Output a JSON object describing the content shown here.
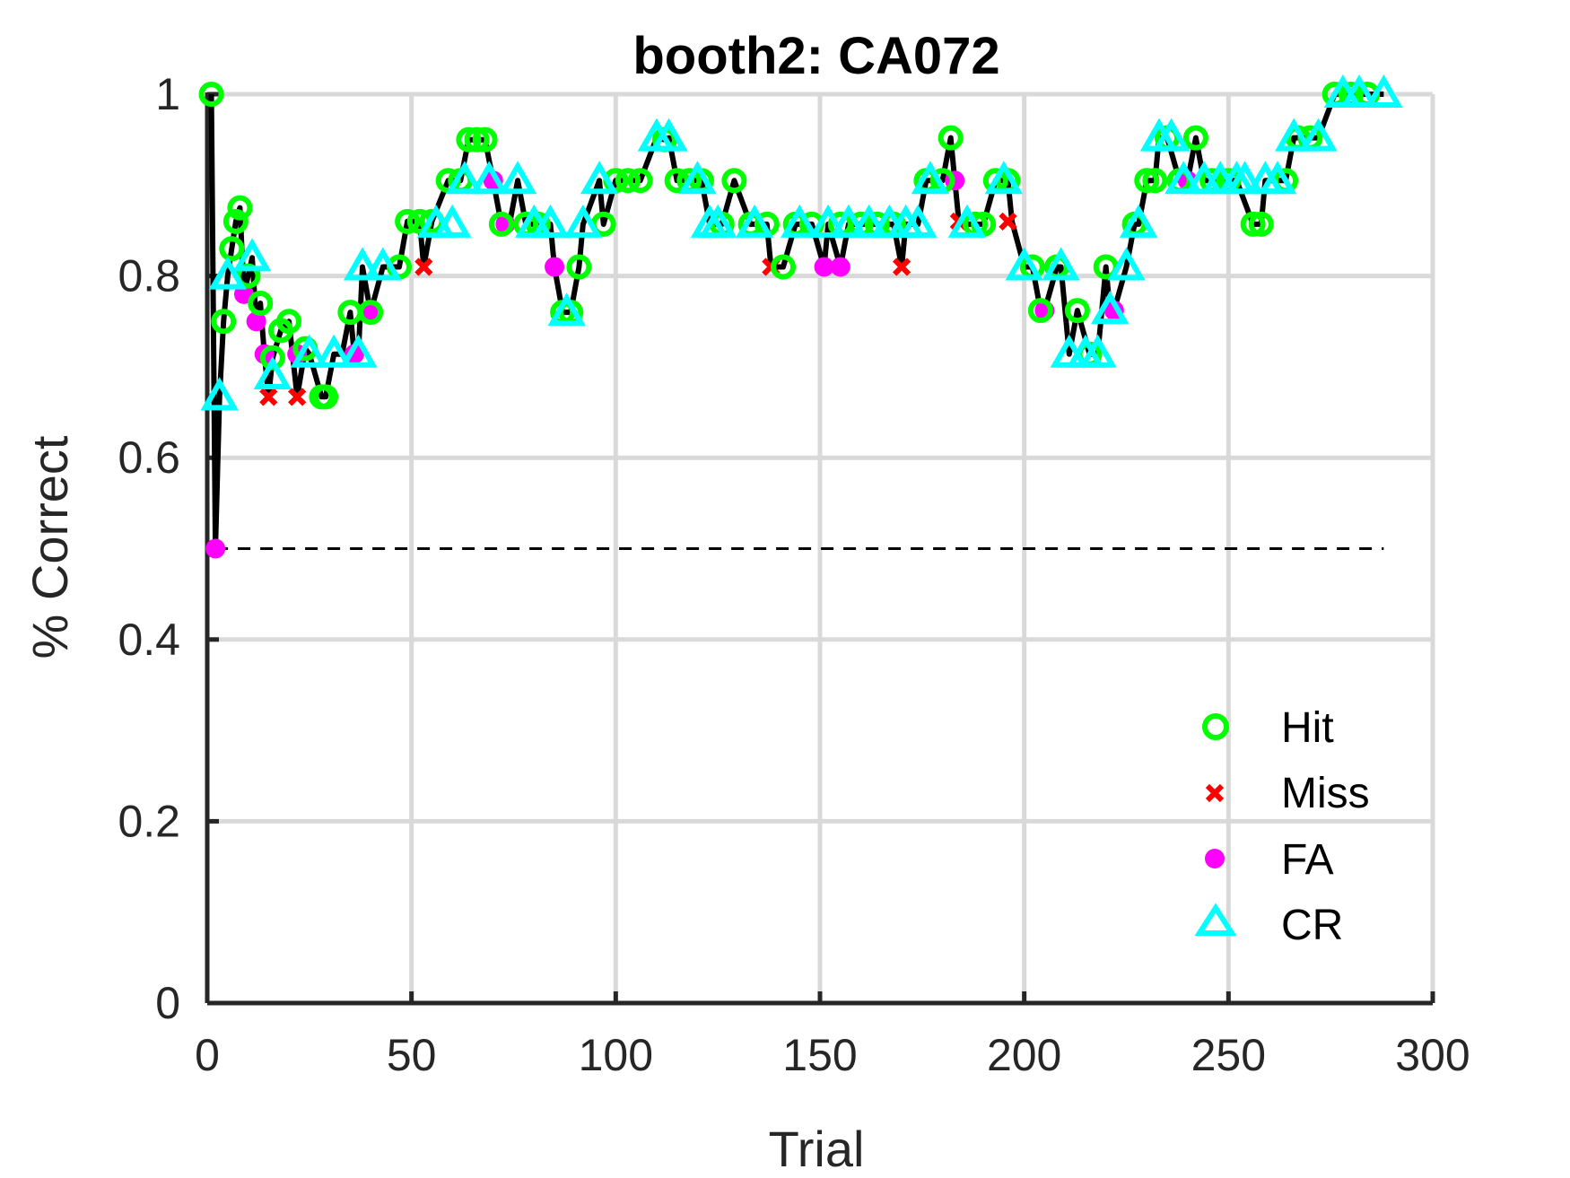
{
  "chart_data": {
    "type": "scatter",
    "title": "booth2: CA072",
    "xlabel": "Trial",
    "ylabel": "% Correct",
    "xlim": [
      0,
      300
    ],
    "ylim": [
      0,
      1
    ],
    "xticks": [
      0,
      50,
      100,
      150,
      200,
      250,
      300
    ],
    "yticks": [
      0,
      0.2,
      0.4,
      0.6,
      0.8,
      1
    ],
    "ytick_labels": [
      "0",
      "0.2",
      "0.4",
      "0.6",
      "0.8",
      "1"
    ],
    "grid": true,
    "chance_line": 0.5,
    "legend_position": "bottom-right",
    "colors": {
      "line": "#000000",
      "Hit": "#00ff00",
      "Miss": "#ff0000",
      "FA": "#ff00ff",
      "CR": "#00ffff"
    },
    "series": [
      {
        "name": "Hit",
        "marker": "circle",
        "points": [
          [
            1,
            1.0
          ],
          [
            4,
            0.75
          ],
          [
            6,
            0.83
          ],
          [
            7,
            0.86
          ],
          [
            8,
            0.875
          ],
          [
            10,
            0.8
          ],
          [
            13,
            0.77
          ],
          [
            16,
            0.71
          ],
          [
            18,
            0.74
          ],
          [
            20,
            0.75
          ],
          [
            24,
            0.72
          ],
          [
            28,
            0.667
          ],
          [
            29,
            0.667
          ],
          [
            35,
            0.76
          ],
          [
            40,
            0.76
          ],
          [
            47,
            0.81
          ],
          [
            49,
            0.86
          ],
          [
            52,
            0.86
          ],
          [
            55,
            0.86
          ],
          [
            59,
            0.905
          ],
          [
            62,
            0.905
          ],
          [
            64,
            0.95
          ],
          [
            66,
            0.95
          ],
          [
            68,
            0.95
          ],
          [
            72,
            0.857
          ],
          [
            78,
            0.857
          ],
          [
            81,
            0.857
          ],
          [
            87,
            0.76
          ],
          [
            89,
            0.76
          ],
          [
            91,
            0.81
          ],
          [
            97,
            0.857
          ],
          [
            100,
            0.905
          ],
          [
            103,
            0.905
          ],
          [
            106,
            0.905
          ],
          [
            112,
            0.95
          ],
          [
            115,
            0.905
          ],
          [
            118,
            0.905
          ],
          [
            121,
            0.905
          ],
          [
            126,
            0.857
          ],
          [
            129,
            0.905
          ],
          [
            133,
            0.857
          ],
          [
            137,
            0.857
          ],
          [
            141,
            0.81
          ],
          [
            144,
            0.857
          ],
          [
            148,
            0.857
          ],
          [
            155,
            0.857
          ],
          [
            160,
            0.857
          ],
          [
            164,
            0.857
          ],
          [
            168,
            0.857
          ],
          [
            176,
            0.905
          ],
          [
            180,
            0.905
          ],
          [
            182,
            0.952
          ],
          [
            188,
            0.857
          ],
          [
            190,
            0.857
          ],
          [
            193,
            0.905
          ],
          [
            196,
            0.905
          ],
          [
            202,
            0.81
          ],
          [
            204,
            0.762
          ],
          [
            208,
            0.81
          ],
          [
            213,
            0.762
          ],
          [
            216,
            0.714
          ],
          [
            220,
            0.81
          ],
          [
            227,
            0.857
          ],
          [
            230,
            0.905
          ],
          [
            232,
            0.905
          ],
          [
            235,
            0.952
          ],
          [
            238,
            0.905
          ],
          [
            242,
            0.952
          ],
          [
            246,
            0.905
          ],
          [
            250,
            0.905
          ],
          [
            256,
            0.857
          ],
          [
            258,
            0.857
          ],
          [
            264,
            0.905
          ],
          [
            267,
            0.952
          ],
          [
            270,
            0.952
          ],
          [
            276,
            1.0
          ],
          [
            280,
            1.0
          ],
          [
            284,
            1.0
          ]
        ]
      },
      {
        "name": "Miss",
        "marker": "x",
        "points": [
          [
            15,
            0.667
          ],
          [
            22,
            0.667
          ],
          [
            53,
            0.81
          ],
          [
            138,
            0.81
          ],
          [
            170,
            0.81
          ],
          [
            184,
            0.86
          ],
          [
            196,
            0.86
          ]
        ]
      },
      {
        "name": "FA",
        "marker": "dot",
        "points": [
          [
            2,
            0.5
          ],
          [
            9,
            0.78
          ],
          [
            12,
            0.75
          ],
          [
            14,
            0.714
          ],
          [
            22,
            0.714
          ],
          [
            36,
            0.714
          ],
          [
            40,
            0.76
          ],
          [
            70,
            0.905
          ],
          [
            73,
            0.857
          ],
          [
            85,
            0.81
          ],
          [
            151,
            0.81
          ],
          [
            155,
            0.81
          ],
          [
            183,
            0.905
          ],
          [
            205,
            0.762
          ],
          [
            222,
            0.762
          ],
          [
            240,
            0.905
          ]
        ]
      },
      {
        "name": "CR",
        "marker": "triangle",
        "points": [
          [
            3,
            0.667
          ],
          [
            5,
            0.8
          ],
          [
            11,
            0.82
          ],
          [
            16,
            0.69
          ],
          [
            25,
            0.714
          ],
          [
            31,
            0.714
          ],
          [
            37,
            0.714
          ],
          [
            38,
            0.81
          ],
          [
            43,
            0.81
          ],
          [
            56,
            0.857
          ],
          [
            60,
            0.857
          ],
          [
            63,
            0.905
          ],
          [
            69,
            0.905
          ],
          [
            76,
            0.905
          ],
          [
            80,
            0.857
          ],
          [
            84,
            0.857
          ],
          [
            88,
            0.76
          ],
          [
            92,
            0.857
          ],
          [
            96,
            0.905
          ],
          [
            110,
            0.952
          ],
          [
            113,
            0.952
          ],
          [
            120,
            0.905
          ],
          [
            123,
            0.857
          ],
          [
            125,
            0.857
          ],
          [
            134,
            0.857
          ],
          [
            145,
            0.857
          ],
          [
            152,
            0.857
          ],
          [
            157,
            0.857
          ],
          [
            162,
            0.857
          ],
          [
            167,
            0.857
          ],
          [
            171,
            0.857
          ],
          [
            174,
            0.857
          ],
          [
            177,
            0.905
          ],
          [
            186,
            0.857
          ],
          [
            195,
            0.905
          ],
          [
            200,
            0.81
          ],
          [
            209,
            0.81
          ],
          [
            211,
            0.714
          ],
          [
            215,
            0.714
          ],
          [
            218,
            0.714
          ],
          [
            221,
            0.762
          ],
          [
            225,
            0.81
          ],
          [
            228,
            0.857
          ],
          [
            233,
            0.952
          ],
          [
            236,
            0.952
          ],
          [
            239,
            0.905
          ],
          [
            244,
            0.905
          ],
          [
            248,
            0.905
          ],
          [
            252,
            0.905
          ],
          [
            254,
            0.905
          ],
          [
            259,
            0.905
          ],
          [
            262,
            0.905
          ],
          [
            266,
            0.952
          ],
          [
            272,
            0.952
          ],
          [
            278,
            1.0
          ],
          [
            282,
            1.0
          ],
          [
            288,
            1.0
          ]
        ]
      }
    ],
    "running_line": [
      [
        1,
        1.0
      ],
      [
        2,
        0.5
      ],
      [
        3,
        0.667
      ],
      [
        4,
        0.75
      ],
      [
        5,
        0.8
      ],
      [
        6,
        0.83
      ],
      [
        7,
        0.86
      ],
      [
        8,
        0.875
      ],
      [
        9,
        0.78
      ],
      [
        10,
        0.8
      ],
      [
        11,
        0.82
      ],
      [
        12,
        0.75
      ],
      [
        13,
        0.77
      ],
      [
        14,
        0.714
      ],
      [
        15,
        0.667
      ],
      [
        16,
        0.71
      ],
      [
        18,
        0.74
      ],
      [
        20,
        0.75
      ],
      [
        22,
        0.667
      ],
      [
        24,
        0.72
      ],
      [
        25,
        0.714
      ],
      [
        28,
        0.667
      ],
      [
        29,
        0.667
      ],
      [
        31,
        0.714
      ],
      [
        33,
        0.714
      ],
      [
        35,
        0.76
      ],
      [
        36,
        0.714
      ],
      [
        37,
        0.714
      ],
      [
        38,
        0.81
      ],
      [
        40,
        0.76
      ],
      [
        43,
        0.81
      ],
      [
        47,
        0.81
      ],
      [
        49,
        0.86
      ],
      [
        52,
        0.86
      ],
      [
        53,
        0.81
      ],
      [
        55,
        0.86
      ],
      [
        59,
        0.905
      ],
      [
        62,
        0.905
      ],
      [
        64,
        0.95
      ],
      [
        66,
        0.95
      ],
      [
        68,
        0.95
      ],
      [
        70,
        0.905
      ],
      [
        72,
        0.857
      ],
      [
        74,
        0.857
      ],
      [
        76,
        0.905
      ],
      [
        78,
        0.857
      ],
      [
        81,
        0.857
      ],
      [
        84,
        0.857
      ],
      [
        85,
        0.81
      ],
      [
        87,
        0.76
      ],
      [
        89,
        0.76
      ],
      [
        91,
        0.81
      ],
      [
        92,
        0.857
      ],
      [
        96,
        0.905
      ],
      [
        97,
        0.857
      ],
      [
        100,
        0.905
      ],
      [
        103,
        0.905
      ],
      [
        106,
        0.905
      ],
      [
        110,
        0.952
      ],
      [
        112,
        0.95
      ],
      [
        113,
        0.952
      ],
      [
        115,
        0.905
      ],
      [
        118,
        0.905
      ],
      [
        121,
        0.905
      ],
      [
        123,
        0.857
      ],
      [
        126,
        0.857
      ],
      [
        129,
        0.905
      ],
      [
        133,
        0.857
      ],
      [
        137,
        0.857
      ],
      [
        138,
        0.81
      ],
      [
        141,
        0.81
      ],
      [
        144,
        0.857
      ],
      [
        148,
        0.857
      ],
      [
        151,
        0.81
      ],
      [
        152,
        0.857
      ],
      [
        155,
        0.81
      ],
      [
        157,
        0.857
      ],
      [
        160,
        0.857
      ],
      [
        164,
        0.857
      ],
      [
        168,
        0.857
      ],
      [
        170,
        0.81
      ],
      [
        171,
        0.857
      ],
      [
        174,
        0.857
      ],
      [
        176,
        0.905
      ],
      [
        180,
        0.905
      ],
      [
        182,
        0.952
      ],
      [
        183,
        0.905
      ],
      [
        184,
        0.86
      ],
      [
        186,
        0.857
      ],
      [
        188,
        0.857
      ],
      [
        190,
        0.857
      ],
      [
        193,
        0.905
      ],
      [
        196,
        0.905
      ],
      [
        197,
        0.86
      ],
      [
        200,
        0.81
      ],
      [
        202,
        0.81
      ],
      [
        204,
        0.762
      ],
      [
        205,
        0.762
      ],
      [
        208,
        0.81
      ],
      [
        209,
        0.81
      ],
      [
        211,
        0.714
      ],
      [
        213,
        0.762
      ],
      [
        216,
        0.714
      ],
      [
        218,
        0.714
      ],
      [
        220,
        0.81
      ],
      [
        221,
        0.762
      ],
      [
        222,
        0.762
      ],
      [
        225,
        0.81
      ],
      [
        227,
        0.857
      ],
      [
        228,
        0.857
      ],
      [
        230,
        0.905
      ],
      [
        232,
        0.905
      ],
      [
        233,
        0.952
      ],
      [
        235,
        0.952
      ],
      [
        238,
        0.905
      ],
      [
        240,
        0.905
      ],
      [
        242,
        0.952
      ],
      [
        244,
        0.905
      ],
      [
        248,
        0.905
      ],
      [
        252,
        0.905
      ],
      [
        256,
        0.857
      ],
      [
        258,
        0.857
      ],
      [
        259,
        0.905
      ],
      [
        264,
        0.905
      ],
      [
        266,
        0.952
      ],
      [
        270,
        0.952
      ],
      [
        272,
        0.952
      ],
      [
        276,
        1.0
      ],
      [
        280,
        1.0
      ],
      [
        284,
        1.0
      ],
      [
        288,
        1.0
      ]
    ]
  }
}
